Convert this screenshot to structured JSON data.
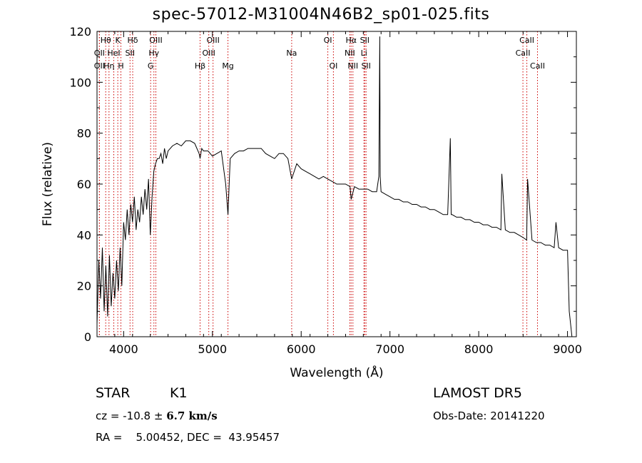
{
  "chart_data": {
    "type": "line",
    "title": "spec-57012-M31004N46B2_sp01-025.fits",
    "xlabel": "Wavelength (Å)",
    "ylabel": "Flux (relative)",
    "xlim": [
      3700,
      9100
    ],
    "ylim": [
      0,
      120
    ],
    "xticks": [
      4000,
      5000,
      6000,
      7000,
      8000,
      9000
    ],
    "yticks": [
      0,
      20,
      40,
      60,
      80,
      100,
      120
    ],
    "grid": false,
    "line_color": "#000000",
    "marker_color": "#cc0000",
    "series": [
      {
        "x": [
          3700,
          3720,
          3740,
          3760,
          3780,
          3800,
          3820,
          3840,
          3860,
          3880,
          3900,
          3920,
          3940,
          3960,
          3980,
          4000,
          4020,
          4040,
          4060,
          4080,
          4100,
          4120,
          4140,
          4160,
          4180,
          4200,
          4220,
          4240,
          4260,
          4280,
          4300,
          4320,
          4340,
          4360,
          4380,
          4400,
          4420,
          4440,
          4460,
          4480,
          4500,
          4550,
          4600,
          4650,
          4700,
          4750,
          4800,
          4850,
          4861,
          4880,
          4900,
          4950,
          5000,
          5050,
          5100,
          5150,
          5175,
          5200,
          5250,
          5300,
          5350,
          5400,
          5450,
          5500,
          5550,
          5600,
          5650,
          5700,
          5750,
          5800,
          5850,
          5893,
          5950,
          6000,
          6050,
          6100,
          6150,
          6200,
          6250,
          6300,
          6350,
          6400,
          6450,
          6500,
          6550,
          6563,
          6600,
          6650,
          6700,
          6750,
          6800,
          6850,
          6875,
          6885,
          6890,
          6900,
          6950,
          7000,
          7050,
          7100,
          7150,
          7200,
          7250,
          7300,
          7350,
          7400,
          7450,
          7500,
          7550,
          7600,
          7650,
          7680,
          7690,
          7700,
          7750,
          7800,
          7850,
          7900,
          7950,
          8000,
          8050,
          8100,
          8150,
          8200,
          8250,
          8260,
          8300,
          8350,
          8400,
          8450,
          8500,
          8540,
          8550,
          8600,
          8650,
          8700,
          8750,
          8800,
          8850,
          8870,
          8900,
          8950,
          9000,
          9020,
          9050
        ],
        "y": [
          5,
          30,
          15,
          35,
          10,
          28,
          8,
          32,
          12,
          25,
          15,
          30,
          18,
          35,
          20,
          45,
          38,
          50,
          40,
          52,
          45,
          55,
          42,
          50,
          45,
          55,
          48,
          58,
          50,
          62,
          40,
          55,
          65,
          68,
          70,
          70,
          72,
          68,
          74,
          70,
          73,
          75,
          76,
          75,
          77,
          77,
          76,
          72,
          70,
          74,
          73,
          73,
          71,
          72,
          73,
          60,
          48,
          70,
          72,
          73,
          73,
          74,
          74,
          74,
          74,
          72,
          71,
          70,
          72,
          72,
          70,
          62,
          68,
          66,
          65,
          64,
          63,
          62,
          63,
          62,
          61,
          60,
          60,
          60,
          59,
          54,
          59,
          58,
          58,
          58,
          57,
          57,
          63,
          118,
          63,
          57,
          56,
          55,
          54,
          54,
          53,
          53,
          52,
          52,
          51,
          51,
          50,
          50,
          49,
          48,
          48,
          78,
          48,
          48,
          47,
          47,
          46,
          46,
          45,
          45,
          44,
          44,
          43,
          43,
          42,
          64,
          42,
          41,
          41,
          40,
          39,
          38,
          62,
          38,
          37,
          37,
          36,
          36,
          35,
          45,
          35,
          34,
          34,
          10,
          0
        ]
      }
    ],
    "line_markers": [
      {
        "x": 3727,
        "label": "OII",
        "row": 1
      },
      {
        "x": 3727,
        "label": "OII",
        "row": 2
      },
      {
        "x": 3798,
        "label": "Hθ",
        "row": 0
      },
      {
        "x": 3835,
        "label": "Hη",
        "row": 2
      },
      {
        "x": 3889,
        "label": "HeI",
        "row": 1
      },
      {
        "x": 3934,
        "label": "K",
        "row": 0
      },
      {
        "x": 3969,
        "label": "H",
        "row": 2
      },
      {
        "x": 4072,
        "label": "SII",
        "row": 1
      },
      {
        "x": 4102,
        "label": "Hδ",
        "row": 0
      },
      {
        "x": 4304,
        "label": "G",
        "row": 2
      },
      {
        "x": 4341,
        "label": "Hγ",
        "row": 1
      },
      {
        "x": 4363,
        "label": "OIII",
        "row": 0
      },
      {
        "x": 4861,
        "label": "Hβ",
        "row": 2
      },
      {
        "x": 4959,
        "label": "OIII",
        "row": 1
      },
      {
        "x": 5007,
        "label": "OIII",
        "row": 0
      },
      {
        "x": 5175,
        "label": "Mg",
        "row": 2
      },
      {
        "x": 5893,
        "label": "Na",
        "row": 1
      },
      {
        "x": 6300,
        "label": "OI",
        "row": 0
      },
      {
        "x": 6363,
        "label": "OI",
        "row": 2
      },
      {
        "x": 6548,
        "label": "NII",
        "row": 1
      },
      {
        "x": 6563,
        "label": "Hα",
        "row": 0
      },
      {
        "x": 6583,
        "label": "NII",
        "row": 2
      },
      {
        "x": 6707,
        "label": "Li",
        "row": 1
      },
      {
        "x": 6716,
        "label": "SII",
        "row": 0
      },
      {
        "x": 6731,
        "label": "SII",
        "row": 2
      },
      {
        "x": 8498,
        "label": "CaII",
        "row": 1
      },
      {
        "x": 8542,
        "label": "CaII",
        "row": 0
      },
      {
        "x": 8662,
        "label": "CaII",
        "row": 2
      }
    ]
  },
  "info": {
    "object_class": "STAR",
    "subclass": "K1",
    "survey": "LAMOST DR5",
    "cz_label": "cz =",
    "cz_value": "-10.8",
    "cz_pm": "±",
    "cz_err": "6.7 km/s",
    "obs_date": "Obs-Date: 20141220",
    "coords": "RA =    5.00452, DEC =  43.95457"
  }
}
